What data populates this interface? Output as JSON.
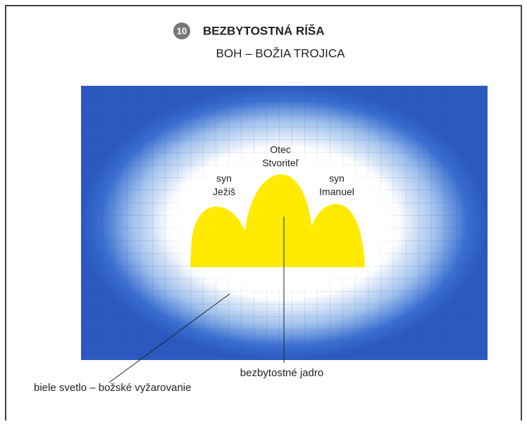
{
  "header": {
    "badge": "10",
    "title": "BEZBYTOSTNÁ RÍŠA",
    "subtitle": "BOH – BOŽIA TROJICA"
  },
  "figure": {
    "labels": {
      "center": [
        "Otec",
        "Stvoriteľ"
      ],
      "left": [
        "syn",
        "Ježiš"
      ],
      "right": [
        "syn",
        "Imanuel"
      ]
    },
    "callouts": {
      "core": "bezbytostné jadro",
      "light": "biele svetlo – božské vyžarovanie"
    }
  }
}
